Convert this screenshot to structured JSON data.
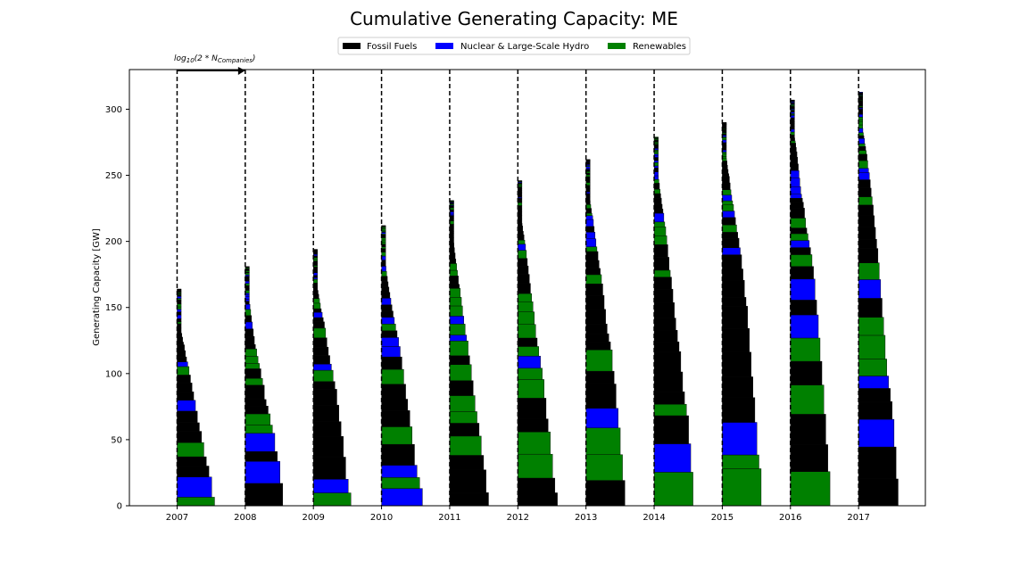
{
  "chart_data": {
    "type": "bar",
    "title": "Cumulative Generating Capacity: ME",
    "xlabel": "",
    "ylabel": "Generating Capacity [GW]",
    "x_tick_labels": [
      "2007",
      "2008",
      "2009",
      "2010",
      "2011",
      "2012",
      "2013",
      "2014",
      "2015",
      "2016",
      "2017"
    ],
    "years": [
      2007,
      2008,
      2009,
      2010,
      2011,
      2012,
      2013,
      2014,
      2015,
      2016,
      2017
    ],
    "xlim": [
      2006.3,
      2017.98
    ],
    "ylim": [
      0,
      330
    ],
    "y_ticks": [
      0,
      50,
      100,
      150,
      200,
      250,
      300
    ],
    "y_tick_labels": [
      "0",
      "50",
      "100",
      "150",
      "200",
      "250",
      "300"
    ],
    "grid": false,
    "legend_position": "top-center, outside plot",
    "legend": [
      {
        "name": "Fossil Fuels",
        "color": "#000000"
      },
      {
        "name": "Nuclear & Large-Scale Hydro",
        "color": "#0000ff"
      },
      {
        "name": "Renewables",
        "color": "#008000"
      }
    ],
    "annotation": {
      "text_base": "log",
      "text_sub1": "10",
      "text_mid": "(2 * N",
      "text_sub2": "Companies",
      "text_end": ")"
    },
    "totals_gw": [
      164,
      181,
      194,
      212,
      231,
      246,
      262,
      279,
      290,
      307,
      313
    ],
    "largest_offsets": [
      0.55,
      0.55,
      0.55,
      0.6,
      0.57,
      0.58,
      0.57,
      0.57,
      0.57,
      0.58,
      0.58
    ],
    "series": [
      {
        "name": "Fossil Fuels",
        "color": "#000000"
      },
      {
        "name": "Nuclear & Large-Scale Hydro",
        "color": "#0000ff"
      },
      {
        "name": "Renewables",
        "color": "#008000"
      }
    ]
  }
}
